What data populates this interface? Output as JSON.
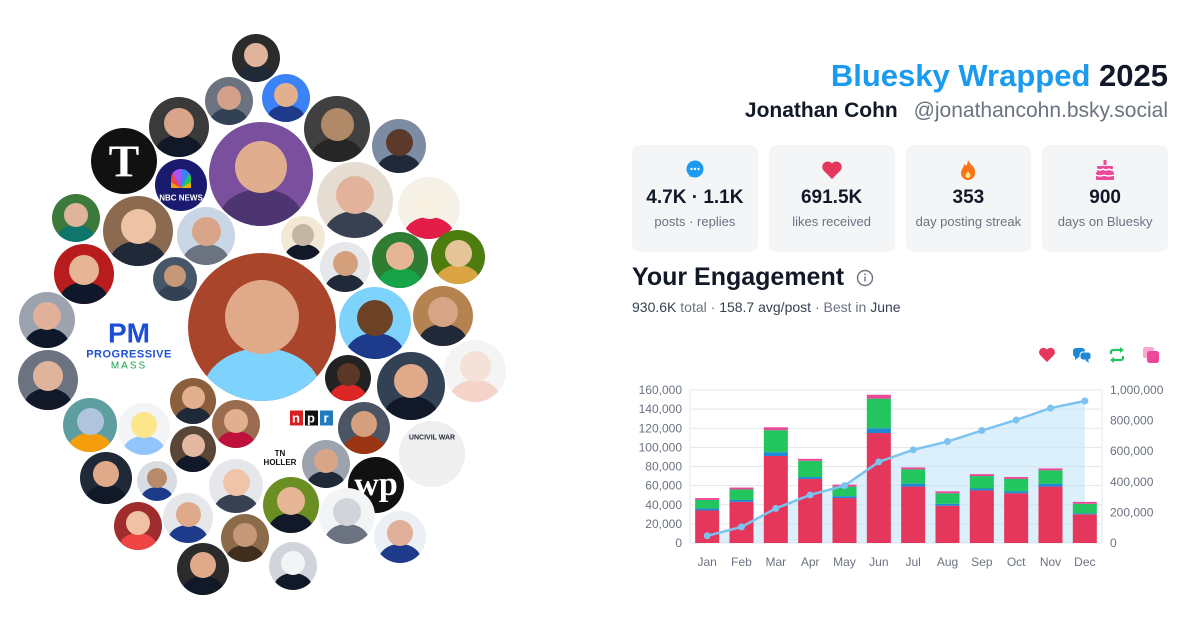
{
  "header": {
    "brand": "Bluesky Wrapped",
    "year": "2025",
    "name": "Jonathan Cohn",
    "handle": "@jonathancohn.bsky.social"
  },
  "stats": [
    {
      "icon": "chat-bubble-icon",
      "value": "4.7K · 1.1K",
      "label": "posts · replies",
      "color": "#1a9bf0"
    },
    {
      "icon": "heart-icon",
      "value": "691.5K",
      "label": "likes received",
      "color": "#e5365b"
    },
    {
      "icon": "flame-icon",
      "value": "353",
      "label": "day posting streak",
      "color": "#f97316"
    },
    {
      "icon": "cake-icon",
      "value": "900",
      "label": "days on Bluesky",
      "color": "#ec4899"
    }
  ],
  "engagement": {
    "title": "Your Engagement",
    "total": "930.6K",
    "total_label": "total",
    "avg": "158.7 avg/post",
    "best_prefix": "Best in",
    "best": "June"
  },
  "bubble_labels": {
    "pm": "PM",
    "pm_sub": "PROGRESSIVE",
    "pm_sub2": "MASS",
    "nyt": "T",
    "wp": "wp",
    "npr": "npr",
    "nbc": "NBC NEWS",
    "tnholler": "TN HOLLER",
    "uncivil": "UNCIVIL WAR"
  },
  "chart_data": {
    "type": "bar",
    "categories": [
      "Jan",
      "Feb",
      "Mar",
      "Apr",
      "May",
      "Jun",
      "Jul",
      "Aug",
      "Sep",
      "Oct",
      "Nov",
      "Dec"
    ],
    "series": [
      {
        "key": "likes",
        "color": "#e5365b",
        "values": [
          34000,
          43000,
          91000,
          67000,
          47000,
          115000,
          59000,
          39000,
          55000,
          52000,
          59000,
          30000
        ]
      },
      {
        "key": "replies",
        "color": "#1e88d6",
        "values": [
          2000,
          2000,
          4000,
          2000,
          2000,
          5000,
          3000,
          2000,
          2000,
          2000,
          3000,
          1000
        ]
      },
      {
        "key": "reposts",
        "color": "#22c55e",
        "values": [
          9000,
          11000,
          23000,
          17000,
          10000,
          31000,
          15000,
          11000,
          13000,
          13000,
          14000,
          10000
        ]
      },
      {
        "key": "quotes",
        "color": "#ec4899",
        "values": [
          2000,
          2000,
          3000,
          2000,
          2000,
          4000,
          2000,
          2000,
          2000,
          2000,
          2000,
          2000
        ]
      }
    ],
    "cumulative": {
      "color": "#7cc3ef",
      "values": [
        47000,
        105000,
        226000,
        314000,
        375000,
        530000,
        609000,
        663000,
        735000,
        804000,
        882000,
        928000
      ]
    },
    "ylim": [
      0,
      160000
    ],
    "y2lim": [
      0,
      1000000
    ],
    "yticks": [
      "0",
      "20,000",
      "40,000",
      "60,000",
      "80,000",
      "100,000",
      "120,000",
      "140,000",
      "160,000"
    ],
    "y2ticks": [
      "0",
      "200,000",
      "400,000",
      "600,000",
      "800,000",
      "1,000,000"
    ]
  }
}
